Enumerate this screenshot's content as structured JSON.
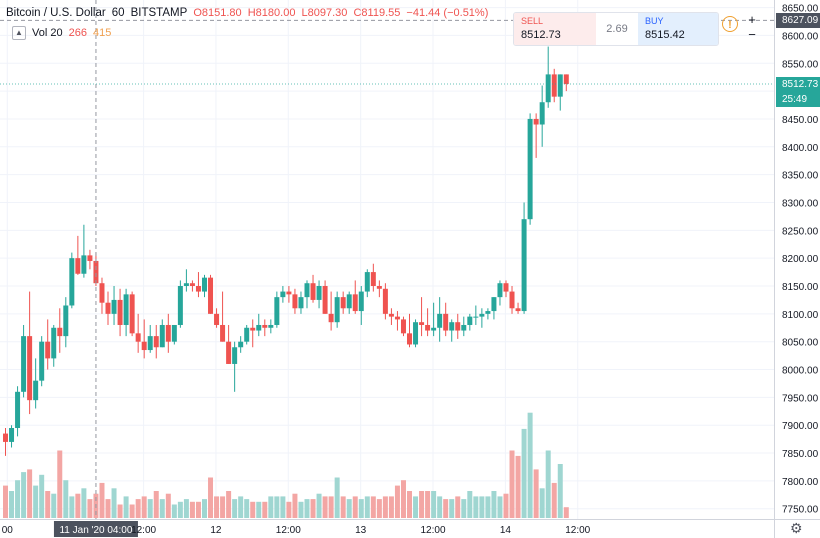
{
  "header": {
    "symbol": "Bitcoin / U.S. Dollar",
    "interval": "60",
    "exchange": "BITSTAMP",
    "ohlc": {
      "o": "O8151.80",
      "h": "H8180.00",
      "l": "L8097.30",
      "c": "C8119.55",
      "chg": "−41.44 (−0.51%)"
    },
    "vol_label": "Vol 20",
    "vol_a": "266",
    "vol_b": "415",
    "collapse_icon": "chevron-up-icon"
  },
  "trade": {
    "sell_label": "SELL",
    "sell_price": "8512.73",
    "spread": "2.69",
    "buy_label": "BUY",
    "buy_price": "8515.42"
  },
  "toolbar": {
    "info_icon": "!",
    "zoom_in": "+",
    "zoom_out": "−",
    "gear_icon": "⚙"
  },
  "price_tags": {
    "crosshair": "8627.09",
    "last": "8512.73",
    "countdown": "25:49",
    "crosshair_color": "#4c525e",
    "last_color": "#26a69a"
  },
  "colors": {
    "up": "#26a69a",
    "down": "#ef5350",
    "vol_up": "#9fd6d1",
    "vol_down": "#f3a6a4"
  },
  "chart_data": {
    "type": "candlestick",
    "y_ticks": [
      "7750.00",
      "7800.00",
      "7850.00",
      "7900.00",
      "7950.00",
      "8000.00",
      "8050.00",
      "8100.00",
      "8150.00",
      "8200.00",
      "8250.00",
      "8300.00",
      "8350.00",
      "8400.00",
      "8450.00",
      "8500.00",
      "8550.00",
      "8600.00",
      "8650.00"
    ],
    "ylim": [
      7728,
      8660
    ],
    "x_ticks": [
      {
        "index": 0.3,
        "label": "00"
      },
      {
        "index": 22.9,
        "label": "12:00"
      },
      {
        "index": 34.9,
        "label": "12"
      },
      {
        "index": 46.9,
        "label": "12:00"
      },
      {
        "index": 58.9,
        "label": "13"
      },
      {
        "index": 70.9,
        "label": "12:00"
      },
      {
        "index": 82.9,
        "label": "14"
      },
      {
        "index": 94.9,
        "label": "12:00"
      }
    ],
    "crosshair_label": "11 Jan '20   04:00",
    "crosshair_index": 15,
    "crosshair_price": 8627.09,
    "last_price": 8512.73,
    "volume_max": 500,
    "candles": [
      [
        7885,
        7895,
        7845,
        7870,
        120
      ],
      [
        7870,
        7900,
        7860,
        7895,
        100
      ],
      [
        7895,
        7970,
        7880,
        7960,
        140
      ],
      [
        7960,
        8080,
        7950,
        8060,
        170
      ],
      [
        8060,
        8140,
        7920,
        7945,
        180
      ],
      [
        7945,
        8020,
        7930,
        7980,
        120
      ],
      [
        7980,
        8060,
        7970,
        8050,
        160
      ],
      [
        8050,
        8090,
        8000,
        8020,
        100
      ],
      [
        8020,
        8080,
        8005,
        8075,
        90
      ],
      [
        8075,
        8110,
        8030,
        8060,
        250
      ],
      [
        8060,
        8130,
        8040,
        8115,
        140
      ],
      [
        8115,
        8210,
        8110,
        8200,
        80
      ],
      [
        8200,
        8240,
        8170,
        8172,
        90
      ],
      [
        8172,
        8260,
        8165,
        8205,
        110
      ],
      [
        8205,
        8215,
        8180,
        8195,
        70
      ],
      [
        8195,
        8210,
        8150,
        8155,
        90
      ],
      [
        8155,
        8165,
        8100,
        8120,
        130
      ],
      [
        8120,
        8140,
        8080,
        8100,
        70
      ],
      [
        8100,
        8150,
        8080,
        8125,
        110
      ],
      [
        8125,
        8145,
        8060,
        8080,
        50
      ],
      [
        8080,
        8145,
        8060,
        8135,
        80
      ],
      [
        8135,
        8140,
        8060,
        8065,
        50
      ],
      [
        8065,
        8100,
        8030,
        8050,
        70
      ],
      [
        8050,
        8090,
        8020,
        8035,
        80
      ],
      [
        8035,
        8080,
        8030,
        8060,
        70
      ],
      [
        8060,
        8080,
        8020,
        8040,
        100
      ],
      [
        8040,
        8090,
        8040,
        8080,
        70
      ],
      [
        8080,
        8100,
        8030,
        8050,
        90
      ],
      [
        8050,
        8080,
        8045,
        8080,
        50
      ],
      [
        8080,
        8160,
        8075,
        8150,
        60
      ],
      [
        8150,
        8180,
        8140,
        8155,
        70
      ],
      [
        8155,
        8160,
        8140,
        8150,
        60
      ],
      [
        8150,
        8175,
        8130,
        8140,
        60
      ],
      [
        8140,
        8170,
        8130,
        8165,
        70
      ],
      [
        8165,
        8170,
        8100,
        8100,
        150
      ],
      [
        8100,
        8110,
        8075,
        8080,
        80
      ],
      [
        8080,
        8140,
        8050,
        8050,
        80
      ],
      [
        8050,
        8080,
        8010,
        8010,
        100
      ],
      [
        8010,
        8050,
        7960,
        8040,
        70
      ],
      [
        8040,
        8060,
        8030,
        8050,
        80
      ],
      [
        8050,
        8080,
        8045,
        8075,
        70
      ],
      [
        8075,
        8090,
        8040,
        8070,
        60
      ],
      [
        8070,
        8100,
        8060,
        8080,
        60
      ],
      [
        8080,
        8090,
        8060,
        8075,
        60
      ],
      [
        8075,
        8090,
        8065,
        8080,
        80
      ],
      [
        8080,
        8140,
        8075,
        8130,
        80
      ],
      [
        8130,
        8150,
        8120,
        8140,
        80
      ],
      [
        8140,
        8150,
        8120,
        8135,
        60
      ],
      [
        8135,
        8145,
        8100,
        8110,
        90
      ],
      [
        8110,
        8140,
        8100,
        8130,
        60
      ],
      [
        8130,
        8160,
        8110,
        8155,
        70
      ],
      [
        8155,
        8170,
        8120,
        8125,
        70
      ],
      [
        8125,
        8160,
        8110,
        8150,
        90
      ],
      [
        8150,
        8160,
        8100,
        8100,
        80
      ],
      [
        8100,
        8140,
        8070,
        8085,
        80
      ],
      [
        8085,
        8140,
        8075,
        8130,
        150
      ],
      [
        8130,
        8140,
        8100,
        8110,
        80
      ],
      [
        8110,
        8140,
        8100,
        8135,
        70
      ],
      [
        8135,
        8160,
        8100,
        8105,
        80
      ],
      [
        8105,
        8150,
        8080,
        8140,
        70
      ],
      [
        8140,
        8180,
        8130,
        8175,
        80
      ],
      [
        8175,
        8190,
        8140,
        8150,
        80
      ],
      [
        8150,
        8160,
        8130,
        8145,
        70
      ],
      [
        8145,
        8155,
        8090,
        8100,
        80
      ],
      [
        8100,
        8110,
        8080,
        8095,
        80
      ],
      [
        8095,
        8105,
        8070,
        8090,
        120
      ],
      [
        8090,
        8095,
        8060,
        8065,
        140
      ],
      [
        8065,
        8100,
        8040,
        8045,
        100
      ],
      [
        8045,
        8090,
        8040,
        8085,
        80
      ],
      [
        8085,
        8130,
        8060,
        8080,
        100
      ],
      [
        8080,
        8110,
        8060,
        8070,
        100
      ],
      [
        8070,
        8120,
        8060,
        8075,
        100
      ],
      [
        8075,
        8130,
        8050,
        8100,
        80
      ],
      [
        8100,
        8120,
        8060,
        8070,
        70
      ],
      [
        8070,
        8090,
        8050,
        8085,
        70
      ],
      [
        8085,
        8100,
        8055,
        8070,
        80
      ],
      [
        8070,
        8095,
        8060,
        8080,
        70
      ],
      [
        8080,
        8100,
        8070,
        8095,
        100
      ],
      [
        8095,
        8115,
        8080,
        8095,
        80
      ],
      [
        8095,
        8110,
        8075,
        8100,
        80
      ],
      [
        8100,
        8110,
        8090,
        8105,
        80
      ],
      [
        8105,
        8130,
        8090,
        8130,
        100
      ],
      [
        8130,
        8160,
        8115,
        8155,
        80
      ],
      [
        8155,
        8160,
        8130,
        8140,
        90
      ],
      [
        8140,
        8150,
        8100,
        8110,
        250
      ],
      [
        8110,
        8120,
        8100,
        8105,
        230
      ],
      [
        8105,
        8300,
        8100,
        8270,
        330
      ],
      [
        8270,
        8460,
        8260,
        8450,
        390
      ],
      [
        8450,
        8460,
        8380,
        8440,
        180
      ],
      [
        8440,
        8510,
        8400,
        8480,
        110
      ],
      [
        8480,
        8580,
        8470,
        8530,
        250
      ],
      [
        8530,
        8540,
        8480,
        8490,
        130
      ],
      [
        8490,
        8530,
        8465,
        8530,
        200
      ],
      [
        8530,
        8530,
        8500,
        8512.73,
        40
      ]
    ]
  }
}
